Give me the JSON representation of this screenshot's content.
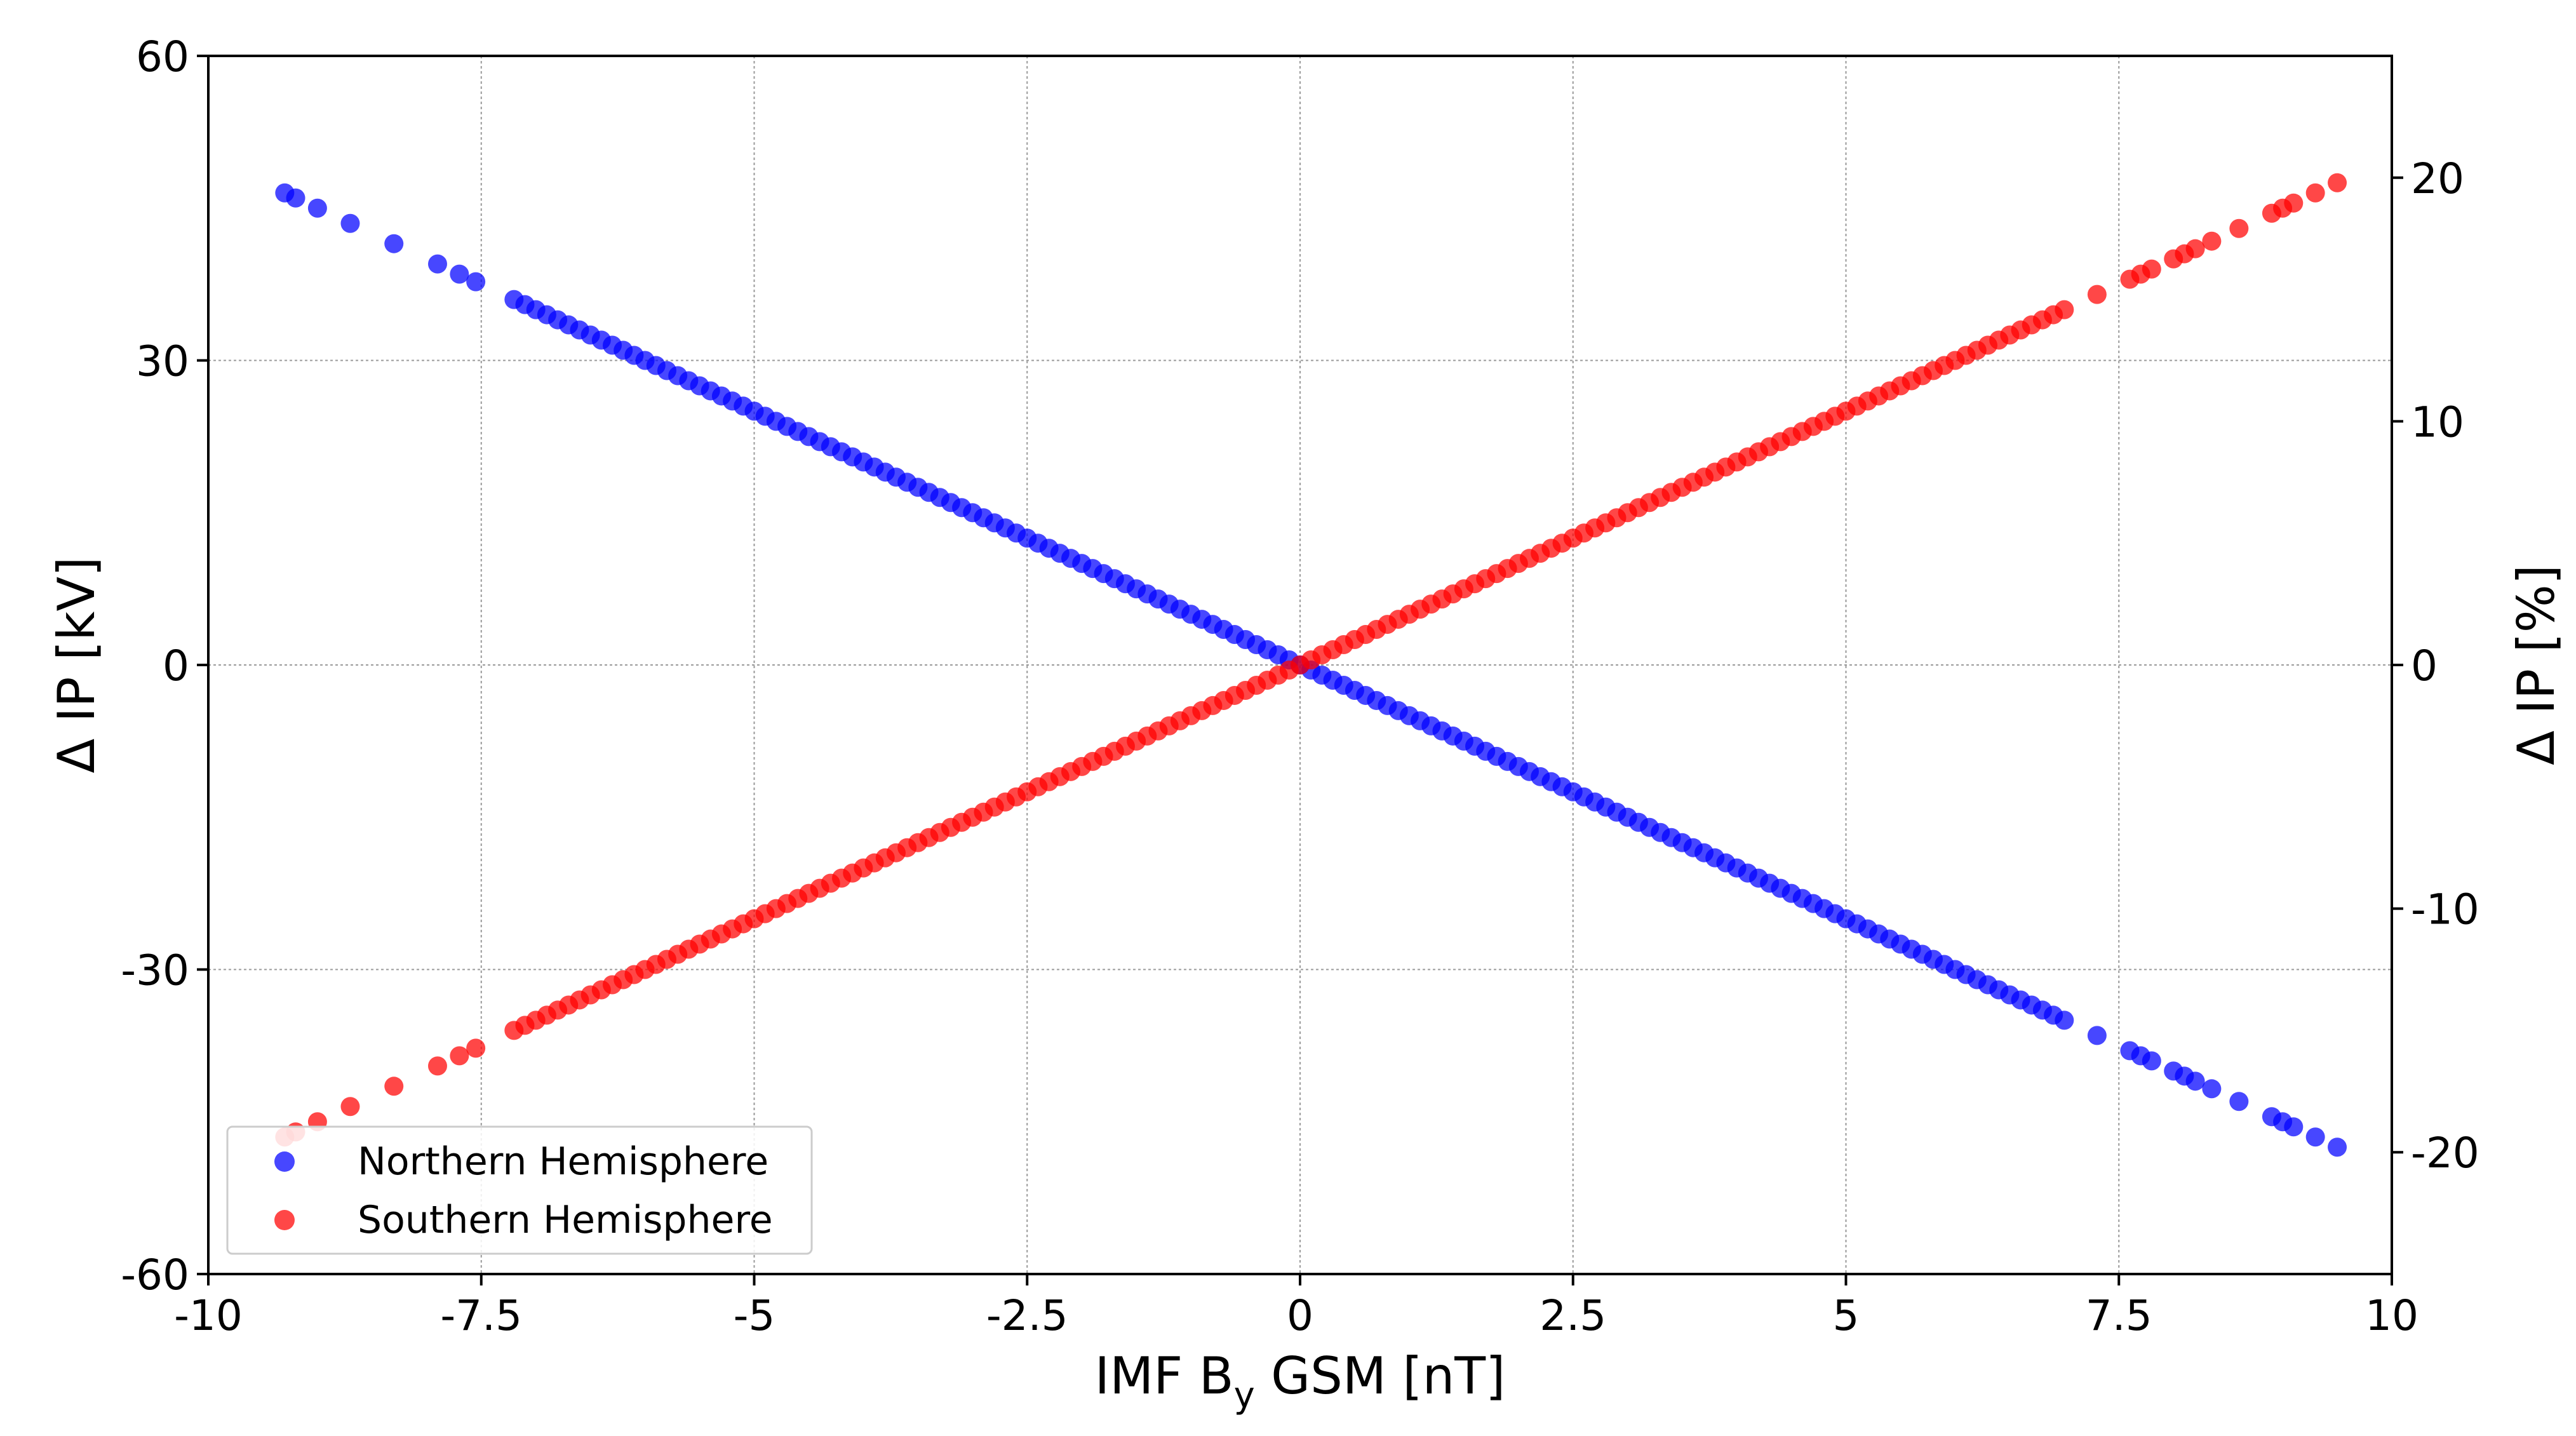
{
  "chart_data": {
    "type": "scatter",
    "xlabel": {
      "main": "IMF B",
      "sub": "y",
      "rest": " GSM [nT]"
    },
    "ylabel": "Δ IP [kV]",
    "y2label": "Δ IP [%]",
    "xlim": [
      -10,
      10
    ],
    "ylim": [
      -60,
      60
    ],
    "y2lim": [
      -25,
      25
    ],
    "x_ticks": [
      -10,
      -7.5,
      -5,
      -2.5,
      0,
      2.5,
      5,
      7.5,
      10
    ],
    "x_tick_labels": [
      "-10",
      "-7.5",
      "-5",
      "-2.5",
      "0",
      "2.5",
      "5",
      "7.5",
      "10"
    ],
    "y_ticks": [
      -60,
      -30,
      0,
      30,
      60
    ],
    "y_tick_labels": [
      "-60",
      "-30",
      "0",
      "30",
      "60"
    ],
    "y2_ticks": [
      -20,
      -10,
      0,
      10,
      20
    ],
    "y2_tick_labels": [
      "-20",
      "-10",
      "0",
      "10",
      "20"
    ],
    "grid": true,
    "legend_position": "bottom-left",
    "x_sparse": [
      -9.3,
      -9.2,
      -9.0,
      -8.7,
      -8.3,
      -7.9,
      -7.7,
      -7.55
    ],
    "x_dense_range": [
      -7.2,
      7.0
    ],
    "x_dense_step": 0.1,
    "x_sparse_pos": [
      7.3,
      7.6,
      7.7,
      7.8,
      8.0,
      8.1,
      8.2,
      8.35,
      8.6,
      8.9,
      9.0,
      9.1,
      9.3,
      9.5
    ],
    "series": [
      {
        "name": "Northern Hemisphere",
        "color": "#0000ff",
        "slope_kv_per_nt": -5.0,
        "intercept_kv": 0
      },
      {
        "name": "Southern Hemisphere",
        "color": "#ff0000",
        "slope_kv_per_nt": 5.0,
        "intercept_kv": 0
      }
    ]
  }
}
